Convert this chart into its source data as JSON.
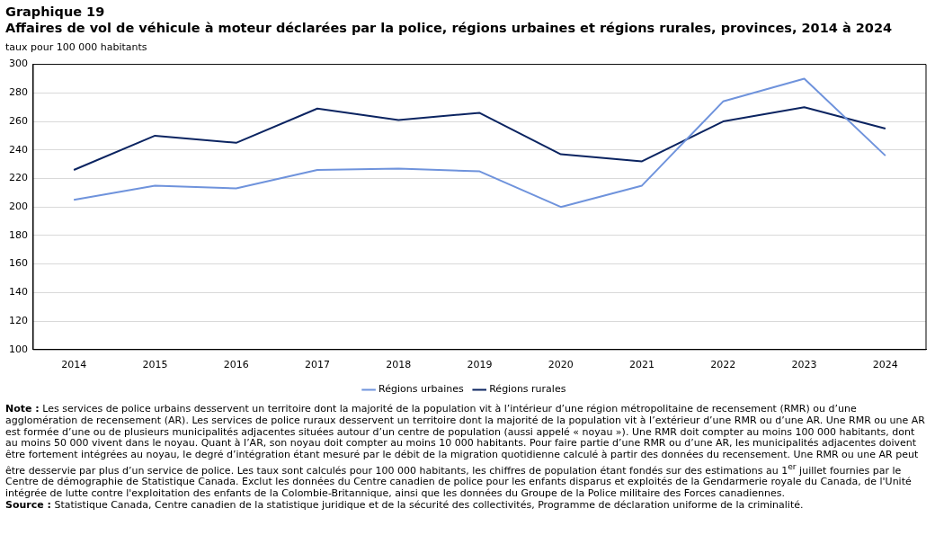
{
  "chart_data": {
    "type": "line",
    "title": "Graphique  19",
    "subtitle": "Affaires de vol de véhicule à moteur déclarées par la police, régions urbaines et régions rurales, provinces, 2014 à 2024",
    "ylabel": "taux pour 100 000 habitants",
    "categories": [
      "2014",
      "2015",
      "2016",
      "2017",
      "2018",
      "2019",
      "2020",
      "2021",
      "2022",
      "2023",
      "2024"
    ],
    "series": [
      {
        "name": "Régions urbaines",
        "color": "#6f93dc",
        "values": [
          205,
          215,
          213,
          226,
          227,
          225,
          200,
          215,
          274,
          290,
          236
        ]
      },
      {
        "name": "Régions rurales",
        "color": "#0b2461",
        "values": [
          226,
          250,
          245,
          269,
          261,
          266,
          237,
          232,
          260,
          270,
          255
        ]
      }
    ],
    "ylim": [
      100,
      300
    ],
    "yticks": [
      100,
      120,
      140,
      160,
      180,
      200,
      220,
      240,
      260,
      280,
      300
    ],
    "grid": "y",
    "legend": "bottom",
    "marker": "none",
    "line_style": "solid",
    "annotations": [
      "Note : Les services de police urbains desservent un territoire dont la majorité de la population vit à l’intérieur d’une région métropolitaine de recensement (RMR) ou d’une agglomération de recensement (AR). Les services de police ruraux desservent un territoire dont la majorité de la population vit à l’extérieur d’une RMR ou d’une AR. Une RMR ou une AR est formée d’une ou de plusieurs municipalités adjacentes situées autour d’un centre de population (aussi appelé « noyau »). Une RMR doit compter au moins 100 000 habitants, dont au moins 50 000 vivent dans le noyau. Quant à l’AR, son noyau doit compter au moins 10 000 habitants. Pour faire partie d’une RMR ou d’une AR, les municipalités adjacentes doivent être fortement intégrées au noyau, le degré d’intégration étant mesuré par le débit de la migration quotidienne calculé à partir des données du recensement. Une RMR ou une AR peut être desservie par plus d’un service de police. Les taux sont calculés pour 100 000 habitants, les chiffres de population étant fondés sur des estimations au 1$^{er}$ juillet fournies par le Centre de démographie de Statistique Canada. Exclut les données du Centre canadien de police pour les enfants disparus et exploités de la Gendarmerie royale du Canada, de l'Unité intégrée de lutte contre l'exploitation des enfants de la Colombie-Britannique, ainsi que les données du Groupe de la Police militaire des Forces canadiennes.",
      "Source : Statistique Canada, Centre canadien de la statistique juridique et de la sécurité des collectivités, Programme de déclaration uniforme de la criminalité."
    ]
  }
}
